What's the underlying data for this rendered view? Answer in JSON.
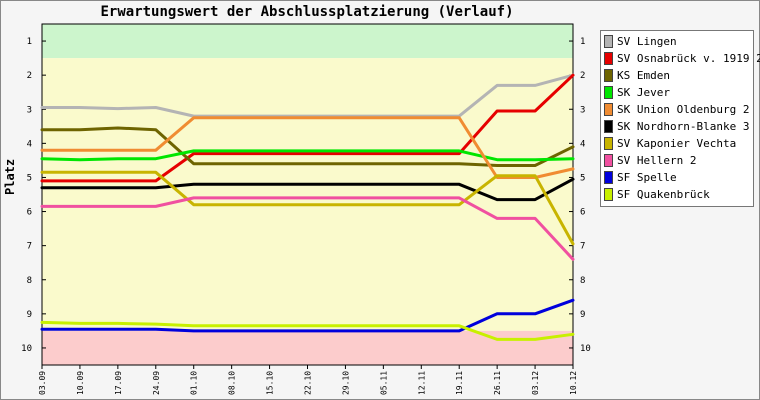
{
  "chart_data": {
    "type": "line",
    "title": "Erwartungswert der Abschlussplatzierung (Verlauf)",
    "xlabel": "",
    "ylabel": "Platz",
    "categories": [
      "03.09",
      "10.09",
      "17.09",
      "24.09",
      "01.10",
      "08.10",
      "15.10",
      "22.10",
      "29.10",
      "05.11",
      "12.11",
      "19.11",
      "26.11",
      "03.12",
      "10.12"
    ],
    "ylim": [
      10.5,
      0.5
    ],
    "y_ticks": [
      1,
      2,
      3,
      4,
      5,
      6,
      7,
      8,
      9,
      10
    ],
    "y_inverted": true,
    "grid": false,
    "legend_position": "right",
    "bands": [
      {
        "from": 0.5,
        "to": 1.5,
        "color": "#ccf5cc"
      },
      {
        "from": 1.5,
        "to": 9.5,
        "color": "#fafacc"
      },
      {
        "from": 9.5,
        "to": 10.5,
        "color": "#fccccc"
      }
    ],
    "series": [
      {
        "name": "SV Lingen",
        "color": "#b4b4b4",
        "values": [
          2.95,
          2.95,
          2.98,
          2.95,
          3.2,
          3.2,
          3.2,
          3.2,
          3.2,
          3.2,
          3.2,
          3.2,
          2.3,
          2.3,
          2.0
        ]
      },
      {
        "name": "SV Osnabrück v. 1919 2",
        "color": "#e60000",
        "values": [
          5.1,
          5.1,
          5.1,
          5.1,
          4.3,
          4.3,
          4.3,
          4.3,
          4.3,
          4.3,
          4.3,
          4.3,
          3.05,
          3.05,
          2.0
        ]
      },
      {
        "name": "KS Emden",
        "color": "#6e6400",
        "values": [
          3.6,
          3.6,
          3.55,
          3.6,
          4.6,
          4.6,
          4.6,
          4.6,
          4.6,
          4.6,
          4.6,
          4.6,
          4.65,
          4.65,
          4.1
        ]
      },
      {
        "name": "SK Jever",
        "color": "#00e600",
        "values": [
          4.45,
          4.48,
          4.45,
          4.45,
          4.22,
          4.22,
          4.22,
          4.22,
          4.22,
          4.22,
          4.22,
          4.22,
          4.48,
          4.48,
          4.45
        ]
      },
      {
        "name": "SK Union Oldenburg 2",
        "color": "#f08c32",
        "values": [
          4.2,
          4.2,
          4.2,
          4.2,
          3.25,
          3.25,
          3.25,
          3.25,
          3.25,
          3.25,
          3.25,
          3.25,
          5.0,
          5.0,
          4.75
        ]
      },
      {
        "name": "SK Nordhorn-Blanke 3",
        "color": "#000000",
        "values": [
          5.3,
          5.3,
          5.3,
          5.3,
          5.2,
          5.2,
          5.2,
          5.2,
          5.2,
          5.2,
          5.2,
          5.2,
          5.65,
          5.65,
          5.05
        ]
      },
      {
        "name": "SV Kaponier Vechta",
        "color": "#c8b400",
        "values": [
          4.85,
          4.85,
          4.85,
          4.85,
          5.8,
          5.8,
          5.8,
          5.8,
          5.8,
          5.8,
          5.8,
          5.8,
          4.95,
          4.95,
          6.95
        ]
      },
      {
        "name": "SV Hellern 2",
        "color": "#f050a0",
        "values": [
          5.85,
          5.85,
          5.85,
          5.85,
          5.6,
          5.6,
          5.6,
          5.6,
          5.6,
          5.6,
          5.6,
          5.6,
          6.2,
          6.2,
          7.4
        ]
      },
      {
        "name": "SF Spelle",
        "color": "#0000dc",
        "values": [
          9.45,
          9.45,
          9.45,
          9.45,
          9.5,
          9.5,
          9.5,
          9.5,
          9.5,
          9.5,
          9.5,
          9.5,
          9.0,
          9.0,
          8.6
        ]
      },
      {
        "name": "SF Quakenbrück",
        "color": "#c8f000",
        "values": [
          9.25,
          9.28,
          9.28,
          9.3,
          9.35,
          9.35,
          9.35,
          9.35,
          9.35,
          9.35,
          9.35,
          9.35,
          9.75,
          9.75,
          9.6
        ]
      }
    ]
  }
}
